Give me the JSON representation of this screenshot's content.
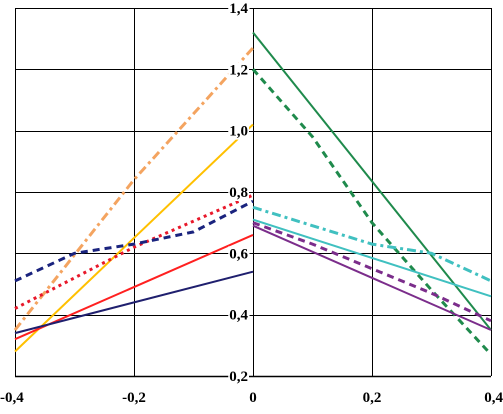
{
  "chart_data": {
    "type": "line",
    "title": "",
    "xlabel": "",
    "ylabel": "",
    "xlim": [
      -0.4,
      0.4
    ],
    "ylim": [
      0.2,
      1.4
    ],
    "grid": true,
    "legend": "none",
    "x_ticks": [
      -0.4,
      -0.2,
      0,
      0.2,
      0.4
    ],
    "x_tick_labels": [
      "-0,4",
      "-0,2",
      "0",
      "0,2",
      "0,4"
    ],
    "y_ticks": [
      0.2,
      0.4,
      0.6,
      0.8,
      1.0,
      1.2,
      1.4
    ],
    "y_tick_labels": [
      "0,2",
      "0,4",
      "0,6",
      "0,8",
      "1,0",
      "1,2",
      "1,4"
    ],
    "series": [
      {
        "color": "#FFC000",
        "style": "solid",
        "points": [
          [
            -0.4,
            0.28
          ],
          [
            0,
            1.02
          ]
        ]
      },
      {
        "color": "#F4A460",
        "style": "dashdot",
        "points": [
          [
            -0.4,
            0.35
          ],
          [
            -0.2,
            0.84
          ],
          [
            0,
            1.27
          ]
        ]
      },
      {
        "color": "#FF2020",
        "style": "solid",
        "points": [
          [
            -0.4,
            0.32
          ],
          [
            0,
            0.66
          ]
        ]
      },
      {
        "color": "#E8182A",
        "style": "dotted",
        "points": [
          [
            -0.4,
            0.42
          ],
          [
            -0.2,
            0.62
          ],
          [
            0,
            0.79
          ]
        ]
      },
      {
        "color": "#1F1F6E",
        "style": "solid",
        "points": [
          [
            -0.4,
            0.34
          ],
          [
            0,
            0.54
          ]
        ]
      },
      {
        "color": "#1A237E",
        "style": "dashed",
        "points": [
          [
            -0.4,
            0.51
          ],
          [
            -0.3,
            0.6
          ],
          [
            -0.2,
            0.63
          ],
          [
            -0.1,
            0.67
          ],
          [
            0,
            0.77
          ]
        ]
      },
      {
        "color": "#1F8A4C",
        "style": "solid",
        "points": [
          [
            0,
            1.32
          ],
          [
            0.4,
            0.35
          ]
        ]
      },
      {
        "color": "#1F8A4C",
        "style": "dashed",
        "points": [
          [
            0,
            1.2
          ],
          [
            0.1,
            0.98
          ],
          [
            0.2,
            0.7
          ],
          [
            0.3,
            0.48
          ],
          [
            0.4,
            0.27
          ]
        ]
      },
      {
        "color": "#40C0C0",
        "style": "solid",
        "points": [
          [
            0,
            0.71
          ],
          [
            0.4,
            0.46
          ]
        ]
      },
      {
        "color": "#40C0C0",
        "style": "dashdot",
        "points": [
          [
            0,
            0.75
          ],
          [
            0.2,
            0.63
          ],
          [
            0.3,
            0.6
          ],
          [
            0.4,
            0.51
          ]
        ]
      },
      {
        "color": "#7B2D8B",
        "style": "solid",
        "points": [
          [
            0,
            0.69
          ],
          [
            0.4,
            0.35
          ]
        ]
      },
      {
        "color": "#7B2D8B",
        "style": "dashed",
        "points": [
          [
            0,
            0.7
          ],
          [
            0.1,
            0.63
          ],
          [
            0.2,
            0.55
          ],
          [
            0.3,
            0.47
          ],
          [
            0.4,
            0.38
          ]
        ]
      }
    ]
  }
}
